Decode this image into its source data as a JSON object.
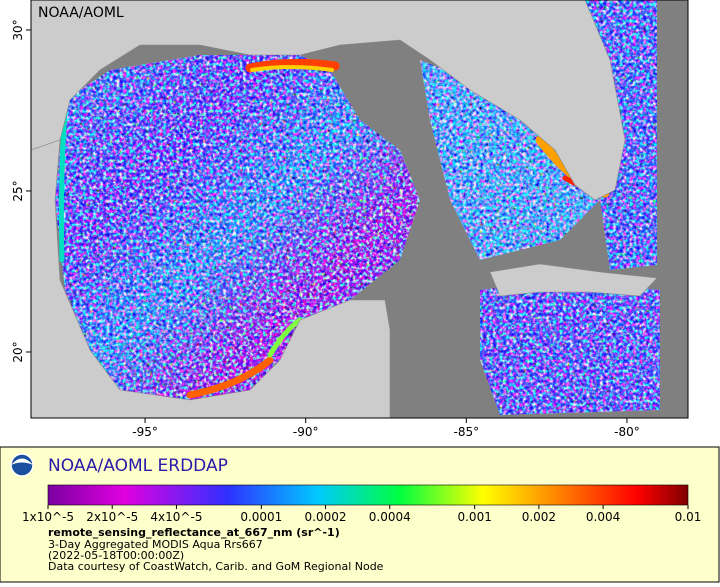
{
  "header": {
    "label": "NOAA/AOML"
  },
  "map": {
    "lon_range": [
      -98.55,
      -78.1
    ],
    "lat_range": [
      17.95,
      30.93
    ],
    "xticks": [
      {
        "value": -95,
        "label": "-95°"
      },
      {
        "value": -90,
        "label": "-90°"
      },
      {
        "value": -85,
        "label": "-85°"
      },
      {
        "value": -80,
        "label": "-80°"
      }
    ],
    "yticks": [
      {
        "value": 20,
        "label": "20°"
      },
      {
        "value": 25,
        "label": "25°"
      },
      {
        "value": 30,
        "label": "30°"
      }
    ]
  },
  "legend": {
    "title": "NOAA/AOML ERDDAP",
    "log_scale": true,
    "range": [
      1e-05,
      0.01
    ],
    "ticks": [
      {
        "value": 1e-05,
        "label": "1x10^-5"
      },
      {
        "value": 2e-05,
        "label": "2x10^-5"
      },
      {
        "value": 4e-05,
        "label": "4x10^-5"
      },
      0.0001,
      0.0002,
      0.0004,
      0.001,
      0.002,
      0.004,
      0.01
    ],
    "variable": "remote_sensing_reflectance_at_667_nm (sr^-1)",
    "lines": [
      "3-Day Aggregated MODIS Aqua Rrs667",
      "(2022-05-18T00:00:00Z)",
      "Data courtesy of CoastWatch, Carib. and GoM Regional Node"
    ]
  }
}
